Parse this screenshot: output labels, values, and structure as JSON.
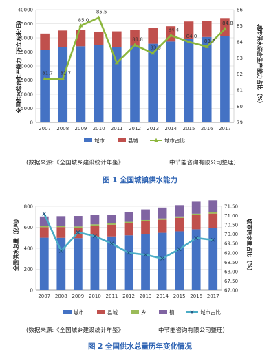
{
  "chart_data": [
    {
      "type": "bar",
      "caption": "图 1 全国城镇供水能力",
      "source_left": "(数据来源:《全国城乡建设统计年鉴》",
      "source_right": "中节能咨询有限公司整理)",
      "ylabel": "全国供水综合生产能力（万立方米/日）",
      "y2label": "城市供水综合生产能力占比（%）",
      "categories": [
        "2007",
        "2008",
        "2009",
        "2010",
        "2011",
        "2012",
        "2013",
        "2014",
        "2015",
        "2016",
        "2017"
      ],
      "ylim": [
        0,
        40000
      ],
      "y2lim": [
        79,
        86
      ],
      "stacked": true,
      "series": [
        {
          "name": "城市",
          "type": "bar",
          "color": "#4472c4",
          "values": [
            25700,
            26600,
            27000,
            27400,
            26700,
            27200,
            27900,
            28700,
            29700,
            30300,
            30500
          ]
        },
        {
          "name": "县城",
          "type": "bar",
          "color": "#c0504d",
          "values": [
            5800,
            6000,
            5800,
            4800,
            5600,
            5700,
            5700,
            5400,
            6100,
            5600,
            6500
          ]
        },
        {
          "name": "城市占比",
          "type": "line",
          "axis": "right",
          "color": "#8cb63c",
          "values": [
            81.7,
            81.7,
            85.0,
            85.5,
            82.7,
            83.8,
            83.3,
            84.4,
            84.0,
            83.7,
            84.8
          ],
          "labels": [
            "81.7",
            "81.7",
            "85.0",
            "85.5",
            "",
            "83.8",
            "83.3",
            "84.4",
            "84.0",
            "83.7",
            "84.8"
          ]
        }
      ],
      "legend": "bottom"
    },
    {
      "type": "bar",
      "caption": "图 2 全国供水总量历年变化情况",
      "source_left": "(数据来源:《全国城乡建设统计年鉴》",
      "source_right": "中节能咨询有限公司整理)",
      "ylabel": "全国供水总量（亿吨）",
      "y2label": "城市供水量占比（%）",
      "categories": [
        "2007",
        "2008",
        "2009",
        "2010",
        "2011",
        "2012",
        "2013",
        "2014",
        "2015",
        "2016",
        "2017"
      ],
      "ylim": [
        0,
        800
      ],
      "y2lim": [
        67.0,
        71.5
      ],
      "stacked": true,
      "series": [
        {
          "name": "城市",
          "type": "bar",
          "color": "#4472c4",
          "values": [
            501,
            500,
            497,
            508,
            513,
            523,
            537,
            547,
            561,
            581,
            594
          ]
        },
        {
          "name": "县城",
          "type": "bar",
          "color": "#c0504d",
          "values": [
            100,
            102,
            98,
            106,
            111,
            116,
            119,
            124,
            129,
            134,
            136
          ]
        },
        {
          "name": "乡",
          "type": "bar",
          "color": "#9bbb59",
          "values": [
            14,
            14,
            13,
            14,
            13,
            13,
            13,
            13,
            13,
            14,
            14
          ]
        },
        {
          "name": "镇",
          "type": "bar",
          "color": "#8064a2",
          "values": [
            88,
            90,
            100,
            93,
            78,
            94,
            101,
            104,
            108,
            114,
            113
          ]
        },
        {
          "name": "城市占比",
          "type": "line",
          "axis": "right",
          "color": "#4bacc6",
          "values": [
            71.1,
            69.1,
            70.1,
            69.9,
            69.5,
            69.0,
            68.9,
            68.7,
            69.2,
            69.8,
            69.7
          ]
        }
      ],
      "y2ticks": [
        "67.00",
        "67.50",
        "68.00",
        "68.50",
        "69.00",
        "69.50",
        "70.00",
        "70.50",
        "71.00",
        "71.50"
      ],
      "legend": "bottom"
    }
  ]
}
